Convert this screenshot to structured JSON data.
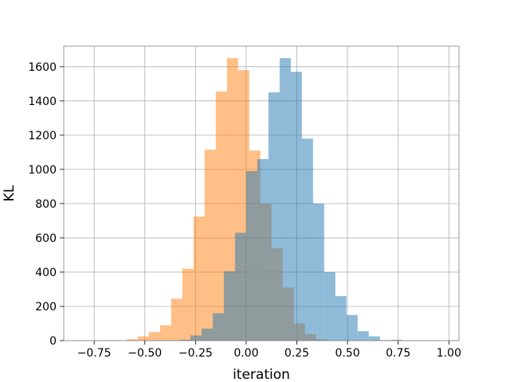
{
  "chart_data": {
    "type": "histogram",
    "xlabel": "iteration",
    "ylabel": "KL",
    "xlim": [
      -0.9,
      1.05
    ],
    "ylim": [
      0,
      1720
    ],
    "grid": true,
    "legend": "none",
    "x_ticks": [
      -0.75,
      -0.5,
      -0.25,
      0.0,
      0.25,
      0.5,
      0.75,
      1.0
    ],
    "x_tick_labels": [
      "−0.75",
      "−0.50",
      "−0.25",
      "0.00",
      "0.25",
      "0.50",
      "0.75",
      "1.00"
    ],
    "y_ticks": [
      0,
      200,
      400,
      600,
      800,
      1000,
      1200,
      1400,
      1600
    ],
    "y_tick_labels": [
      "0",
      "200",
      "400",
      "600",
      "800",
      "1000",
      "1200",
      "1400",
      "1600"
    ],
    "series": [
      {
        "color": "#ff7f0e",
        "alpha": 0.5,
        "bin_edges": [
          -0.7,
          -0.645,
          -0.59,
          -0.535,
          -0.48,
          -0.425,
          -0.37,
          -0.315,
          -0.26,
          -0.205,
          -0.15,
          -0.095,
          -0.04,
          0.015,
          0.07,
          0.125,
          0.18,
          0.235,
          0.29,
          0.345,
          0.4
        ],
        "counts": [
          3,
          0,
          8,
          25,
          50,
          90,
          245,
          420,
          725,
          1115,
          1455,
          1650,
          1580,
          1110,
          800,
          540,
          310,
          100,
          38,
          8
        ]
      },
      {
        "color": "#1f77b4",
        "alpha": 0.5,
        "bin_edges": [
          -0.33,
          -0.275,
          -0.22,
          -0.165,
          -0.11,
          -0.055,
          0.0,
          0.055,
          0.11,
          0.165,
          0.22,
          0.275,
          0.33,
          0.385,
          0.44,
          0.495,
          0.55,
          0.605,
          0.66,
          0.715,
          0.77,
          0.825
        ],
        "counts": [
          5,
          30,
          70,
          160,
          405,
          630,
          990,
          1060,
          1450,
          1650,
          1570,
          1180,
          800,
          400,
          260,
          150,
          55,
          25,
          3,
          5,
          0
        ]
      }
    ]
  }
}
